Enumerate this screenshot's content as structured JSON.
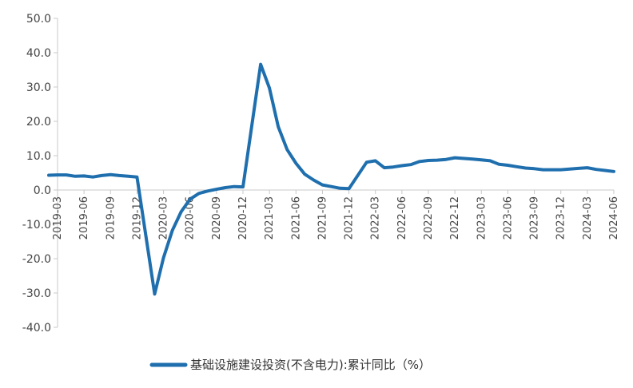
{
  "chart_data": {
    "type": "line",
    "title": "",
    "xlabel": "",
    "ylabel": "",
    "ylim": [
      -40,
      50
    ],
    "yticks": [
      "50.0",
      "40.0",
      "30.0",
      "20.0",
      "10.0",
      "0.0",
      "-10.0",
      "-20.0",
      "-30.0",
      "-40.0"
    ],
    "xtick_labels": [
      "2019-03",
      "2019-06",
      "2019-09",
      "2019-12",
      "2020-03",
      "2020-06",
      "2020-09",
      "2020-12",
      "2021-03",
      "2021-06",
      "2021-09",
      "2021-12",
      "2022-03",
      "2022-06",
      "2022-09",
      "2022-12",
      "2023-03",
      "2023-06",
      "2023-09",
      "2023-12",
      "2024-03",
      "2024-06"
    ],
    "grid": false,
    "legend_position": "bottom",
    "series": [
      {
        "name": "基础设施建设投资(不含电力):累计同比（%）",
        "color": "#1f6fae",
        "x": [
          "2019-02",
          "2019-03",
          "2019-04",
          "2019-05",
          "2019-06",
          "2019-07",
          "2019-08",
          "2019-09",
          "2019-10",
          "2019-11",
          "2019-12",
          "2020-02",
          "2020-03",
          "2020-04",
          "2020-05",
          "2020-06",
          "2020-07",
          "2020-08",
          "2020-09",
          "2020-10",
          "2020-11",
          "2020-12",
          "2021-02",
          "2021-03",
          "2021-04",
          "2021-05",
          "2021-06",
          "2021-07",
          "2021-08",
          "2021-09",
          "2021-10",
          "2021-11",
          "2021-12",
          "2022-02",
          "2022-03",
          "2022-04",
          "2022-05",
          "2022-06",
          "2022-07",
          "2022-08",
          "2022-09",
          "2022-10",
          "2022-11",
          "2022-12",
          "2023-02",
          "2023-03",
          "2023-04",
          "2023-05",
          "2023-06",
          "2023-07",
          "2023-08",
          "2023-09",
          "2023-10",
          "2023-11",
          "2023-12",
          "2024-02",
          "2024-03",
          "2024-04",
          "2024-05",
          "2024-06"
        ],
        "values": [
          4.3,
          4.4,
          4.4,
          4.0,
          4.1,
          3.8,
          4.2,
          4.5,
          4.2,
          4.0,
          3.8,
          -30.3,
          -19.7,
          -11.8,
          -6.3,
          -2.7,
          -1.0,
          -0.3,
          0.2,
          0.7,
          1.0,
          0.9,
          36.6,
          29.7,
          18.4,
          11.8,
          7.8,
          4.6,
          2.9,
          1.5,
          1.0,
          0.5,
          0.4,
          8.1,
          8.5,
          6.5,
          6.7,
          7.1,
          7.4,
          8.3,
          8.6,
          8.7,
          8.9,
          9.4,
          9.0,
          8.8,
          8.5,
          7.5,
          7.2,
          6.8,
          6.4,
          6.2,
          5.9,
          5.9,
          5.9,
          6.3,
          6.5,
          6.0,
          5.7,
          5.4
        ]
      }
    ]
  }
}
